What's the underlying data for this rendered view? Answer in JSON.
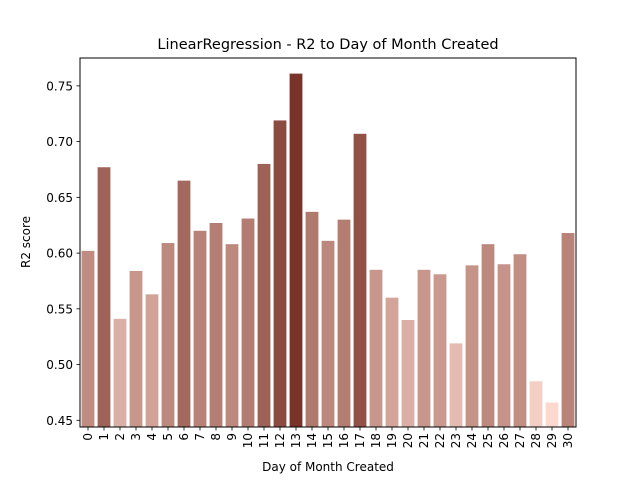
{
  "chart_data": {
    "type": "bar",
    "title": "LinearRegression - R2 to Day of Month Created",
    "xlabel": "Day of Month Created",
    "ylabel": "R2 score",
    "categories": [
      "0",
      "1",
      "2",
      "3",
      "4",
      "5",
      "6",
      "7",
      "8",
      "9",
      "10",
      "11",
      "12",
      "13",
      "14",
      "15",
      "16",
      "17",
      "18",
      "19",
      "20",
      "21",
      "22",
      "23",
      "24",
      "25",
      "26",
      "27",
      "28",
      "29",
      "30"
    ],
    "values": [
      0.602,
      0.677,
      0.541,
      0.584,
      0.563,
      0.609,
      0.665,
      0.62,
      0.627,
      0.608,
      0.631,
      0.68,
      0.719,
      0.761,
      0.637,
      0.611,
      0.63,
      0.707,
      0.585,
      0.56,
      0.54,
      0.585,
      0.581,
      0.519,
      0.589,
      0.608,
      0.59,
      0.599,
      0.485,
      0.466,
      0.618
    ],
    "ylim": [
      0.444,
      0.775
    ],
    "yticks": [
      "0.45",
      "0.50",
      "0.55",
      "0.60",
      "0.65",
      "0.70",
      "0.75"
    ],
    "grid": false,
    "color_scale": {
      "low": "#fbd9cf",
      "high": "#7a3328"
    }
  }
}
